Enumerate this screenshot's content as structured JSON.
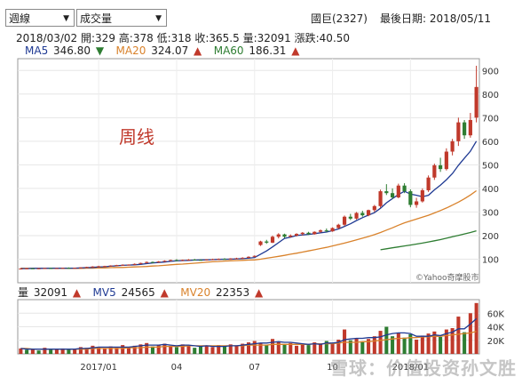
{
  "controls": {
    "period_label": "週線",
    "indicator_label": "成交量"
  },
  "header": {
    "stock": "國巨(2327)",
    "last_date_label": "最後日期: 2018/05/11"
  },
  "ohlc": {
    "date": "2018/03/02",
    "open": "開:329",
    "high": "高:378",
    "low": "低:318",
    "close": "收:365.5",
    "volume": "量:32091",
    "change": "漲跌:40.50"
  },
  "ma": [
    {
      "label": "MA5",
      "value": "346.80",
      "dir": "down",
      "color": "#1f3a93"
    },
    {
      "label": "MA20",
      "value": "324.07",
      "dir": "up",
      "color": "#d9822b"
    },
    {
      "label": "MA60",
      "value": "186.31",
      "dir": "up",
      "color": "#2e7d32"
    }
  ],
  "annotation": "周线",
  "credit": "©Yahoo奇摩股市",
  "volume_legend": [
    {
      "label": "量",
      "value": "32091",
      "dir": "up",
      "color": "#222222"
    },
    {
      "label": "MV5",
      "value": "24565",
      "dir": "up",
      "color": "#1f3a93"
    },
    {
      "label": "MV20",
      "value": "22353",
      "dir": "up",
      "color": "#d9822b"
    }
  ],
  "watermark": "雪球：价值投资孙文胜",
  "chart_data": [
    {
      "type": "candlestick",
      "ylim": [
        0,
        950
      ],
      "yticks": [
        "100",
        "200",
        "300",
        "400",
        "500",
        "600",
        "700",
        "800",
        "900"
      ],
      "xticks": [
        "2017/01",
        "04",
        "07",
        "10",
        "2018/01"
      ],
      "colors": {
        "up": "#c0392b",
        "down": "#2e7d32"
      },
      "candles": [
        [
          60,
          62,
          58,
          60
        ],
        [
          60,
          63,
          58,
          61
        ],
        [
          61,
          62,
          59,
          60
        ],
        [
          60,
          62,
          58,
          61
        ],
        [
          61,
          63,
          59,
          62
        ],
        [
          62,
          64,
          60,
          61
        ],
        [
          61,
          63,
          59,
          62
        ],
        [
          62,
          64,
          61,
          63
        ],
        [
          63,
          65,
          61,
          62
        ],
        [
          62,
          64,
          60,
          63
        ],
        [
          63,
          66,
          62,
          65
        ],
        [
          65,
          68,
          63,
          67
        ],
        [
          67,
          70,
          65,
          69
        ],
        [
          69,
          72,
          67,
          70
        ],
        [
          70,
          72,
          68,
          71
        ],
        [
          71,
          74,
          69,
          73
        ],
        [
          73,
          76,
          71,
          75
        ],
        [
          75,
          78,
          73,
          76
        ],
        [
          76,
          78,
          74,
          77
        ],
        [
          77,
          82,
          75,
          80
        ],
        [
          80,
          85,
          78,
          84
        ],
        [
          84,
          90,
          82,
          88
        ],
        [
          88,
          90,
          84,
          86
        ],
        [
          86,
          92,
          85,
          90
        ],
        [
          90,
          95,
          88,
          93
        ],
        [
          93,
          98,
          91,
          96
        ],
        [
          96,
          100,
          93,
          95
        ],
        [
          95,
          98,
          92,
          97
        ],
        [
          97,
          100,
          95,
          98
        ],
        [
          98,
          101,
          95,
          97
        ],
        [
          97,
          99,
          94,
          96
        ],
        [
          96,
          100,
          94,
          99
        ],
        [
          99,
          102,
          96,
          100
        ],
        [
          100,
          103,
          97,
          101
        ],
        [
          101,
          104,
          98,
          100
        ],
        [
          100,
          104,
          98,
          103
        ],
        [
          103,
          106,
          100,
          104
        ],
        [
          104,
          108,
          102,
          106
        ],
        [
          106,
          112,
          104,
          110
        ],
        [
          110,
          116,
          108,
          114
        ],
        [
          160,
          178,
          156,
          175
        ],
        [
          175,
          182,
          165,
          170
        ],
        [
          170,
          200,
          168,
          195
        ],
        [
          195,
          210,
          188,
          205
        ],
        [
          205,
          208,
          190,
          195
        ],
        [
          195,
          205,
          192,
          200
        ],
        [
          200,
          210,
          196,
          207
        ],
        [
          207,
          215,
          200,
          212
        ],
        [
          212,
          216,
          203,
          206
        ],
        [
          206,
          218,
          204,
          216
        ],
        [
          216,
          226,
          212,
          222
        ],
        [
          222,
          230,
          215,
          218
        ],
        [
          218,
          235,
          216,
          232
        ],
        [
          232,
          250,
          228,
          246
        ],
        [
          246,
          285,
          240,
          280
        ],
        [
          280,
          292,
          266,
          272
        ],
        [
          272,
          300,
          268,
          296
        ],
        [
          296,
          305,
          280,
          286
        ],
        [
          286,
          310,
          282,
          308
        ],
        [
          308,
          330,
          300,
          325
        ],
        [
          325,
          395,
          318,
          388
        ],
        [
          388,
          418,
          372,
          380
        ],
        [
          380,
          400,
          355,
          362
        ],
        [
          362,
          420,
          358,
          412
        ],
        [
          412,
          422,
          380,
          388
        ],
        [
          388,
          396,
          320,
          330
        ],
        [
          330,
          360,
          318,
          345
        ],
        [
          345,
          400,
          340,
          392
        ],
        [
          392,
          455,
          385,
          446
        ],
        [
          446,
          505,
          436,
          498
        ],
        [
          498,
          530,
          470,
          482
        ],
        [
          482,
          570,
          476,
          556
        ],
        [
          556,
          610,
          540,
          600
        ],
        [
          600,
          700,
          580,
          680
        ],
        [
          680,
          690,
          610,
          625
        ],
        [
          625,
          720,
          615,
          690
        ],
        [
          700,
          920,
          680,
          830
        ]
      ],
      "ma5": [
        60,
        60,
        61,
        61,
        61,
        62,
        62,
        62,
        62,
        62,
        63,
        64,
        65,
        67,
        68,
        70,
        72,
        74,
        75,
        76,
        78,
        81,
        84,
        86,
        88,
        91,
        93,
        94,
        95,
        96,
        97,
        97,
        98,
        99,
        100,
        100,
        101,
        102,
        104,
        107,
        121,
        135,
        152,
        170,
        188,
        193,
        200,
        203,
        205,
        208,
        212,
        215,
        221,
        228,
        239,
        250,
        264,
        276,
        287,
        297,
        316,
        339,
        357,
        374,
        388,
        376,
        371,
        365,
        371,
        394,
        414,
        437,
        463,
        498,
        528,
        558,
        600
      ],
      "ma20": [
        62,
        61,
        61,
        61,
        61,
        61,
        61,
        61,
        61,
        61,
        61,
        62,
        62,
        63,
        63,
        64,
        65,
        65,
        66,
        67,
        68,
        69,
        71,
        72,
        74,
        76,
        78,
        79,
        81,
        83,
        85,
        87,
        89,
        90,
        92,
        93,
        94,
        95,
        96,
        97,
        100,
        104,
        108,
        112,
        116,
        121,
        125,
        130,
        135,
        140,
        145,
        150,
        156,
        162,
        168,
        175,
        182,
        189,
        196,
        204,
        213,
        223,
        233,
        244,
        254,
        262,
        270,
        278,
        286,
        296,
        306,
        317,
        329,
        342,
        356,
        372,
        390
      ],
      "ma60": [
        null,
        null,
        null,
        null,
        null,
        null,
        null,
        null,
        null,
        null,
        null,
        null,
        null,
        null,
        null,
        null,
        null,
        null,
        null,
        null,
        null,
        null,
        null,
        null,
        null,
        null,
        null,
        null,
        null,
        null,
        null,
        null,
        null,
        null,
        null,
        null,
        null,
        null,
        null,
        null,
        null,
        null,
        null,
        null,
        null,
        null,
        null,
        null,
        null,
        null,
        null,
        null,
        null,
        null,
        null,
        null,
        null,
        null,
        null,
        null,
        140,
        144,
        148,
        152,
        156,
        160,
        164,
        168,
        173,
        178,
        183,
        189,
        195,
        201,
        207,
        213,
        220
      ]
    },
    {
      "type": "bar",
      "ylim": [
        0,
        80
      ],
      "yticks": [
        "20K",
        "40K",
        "60K"
      ],
      "volume": [
        8,
        6,
        7,
        5,
        9,
        6,
        7,
        8,
        6,
        7,
        10,
        9,
        12,
        10,
        8,
        11,
        9,
        13,
        10,
        12,
        14,
        16,
        11,
        13,
        15,
        12,
        10,
        14,
        13,
        9,
        11,
        12,
        10,
        13,
        11,
        14,
        12,
        15,
        17,
        19,
        16,
        13,
        22,
        18,
        14,
        16,
        12,
        15,
        13,
        17,
        14,
        19,
        16,
        21,
        36,
        20,
        23,
        18,
        22,
        26,
        34,
        40,
        26,
        31,
        24,
        29,
        21,
        27,
        30,
        33,
        25,
        36,
        38,
        55,
        32,
        60,
        75
      ],
      "mv5": [
        8,
        7,
        7,
        7,
        7,
        7,
        7,
        7,
        7,
        7,
        8,
        8,
        9,
        10,
        10,
        10,
        10,
        10,
        10,
        11,
        12,
        13,
        13,
        13,
        14,
        13,
        12,
        13,
        13,
        12,
        11,
        12,
        11,
        11,
        11,
        12,
        12,
        13,
        14,
        15,
        16,
        16,
        17,
        18,
        17,
        17,
        16,
        15,
        14,
        15,
        14,
        16,
        16,
        17,
        21,
        22,
        23,
        23,
        24,
        24,
        25,
        28,
        30,
        31,
        31,
        30,
        26,
        26,
        26,
        28,
        27,
        30,
        32,
        37,
        37,
        44,
        52
      ],
      "mv20": [
        8,
        8,
        7,
        7,
        7,
        7,
        7,
        7,
        7,
        7,
        7,
        7,
        8,
        8,
        8,
        8,
        8,
        8,
        9,
        9,
        9,
        10,
        10,
        10,
        11,
        11,
        11,
        11,
        12,
        12,
        12,
        12,
        12,
        12,
        12,
        12,
        12,
        12,
        13,
        13,
        13,
        13,
        14,
        14,
        14,
        14,
        14,
        14,
        14,
        15,
        15,
        15,
        15,
        16,
        17,
        17,
        17,
        18,
        18,
        19,
        20,
        21,
        22,
        23,
        23,
        24,
        24,
        25,
        25,
        26,
        26,
        27,
        28,
        29,
        30,
        31,
        33
      ],
      "up_flags": [
        1,
        0,
        1,
        0,
        1,
        0,
        1,
        1,
        0,
        1,
        1,
        1,
        1,
        1,
        1,
        1,
        1,
        1,
        1,
        1,
        1,
        1,
        0,
        1,
        1,
        1,
        0,
        1,
        1,
        0,
        0,
        1,
        1,
        1,
        0,
        1,
        1,
        1,
        1,
        1,
        1,
        0,
        1,
        1,
        0,
        1,
        1,
        1,
        0,
        1,
        1,
        0,
        1,
        1,
        1,
        0,
        1,
        0,
        1,
        1,
        1,
        0,
        0,
        1,
        0,
        0,
        1,
        1,
        1,
        1,
        0,
        1,
        1,
        1,
        0,
        1,
        1
      ]
    }
  ]
}
